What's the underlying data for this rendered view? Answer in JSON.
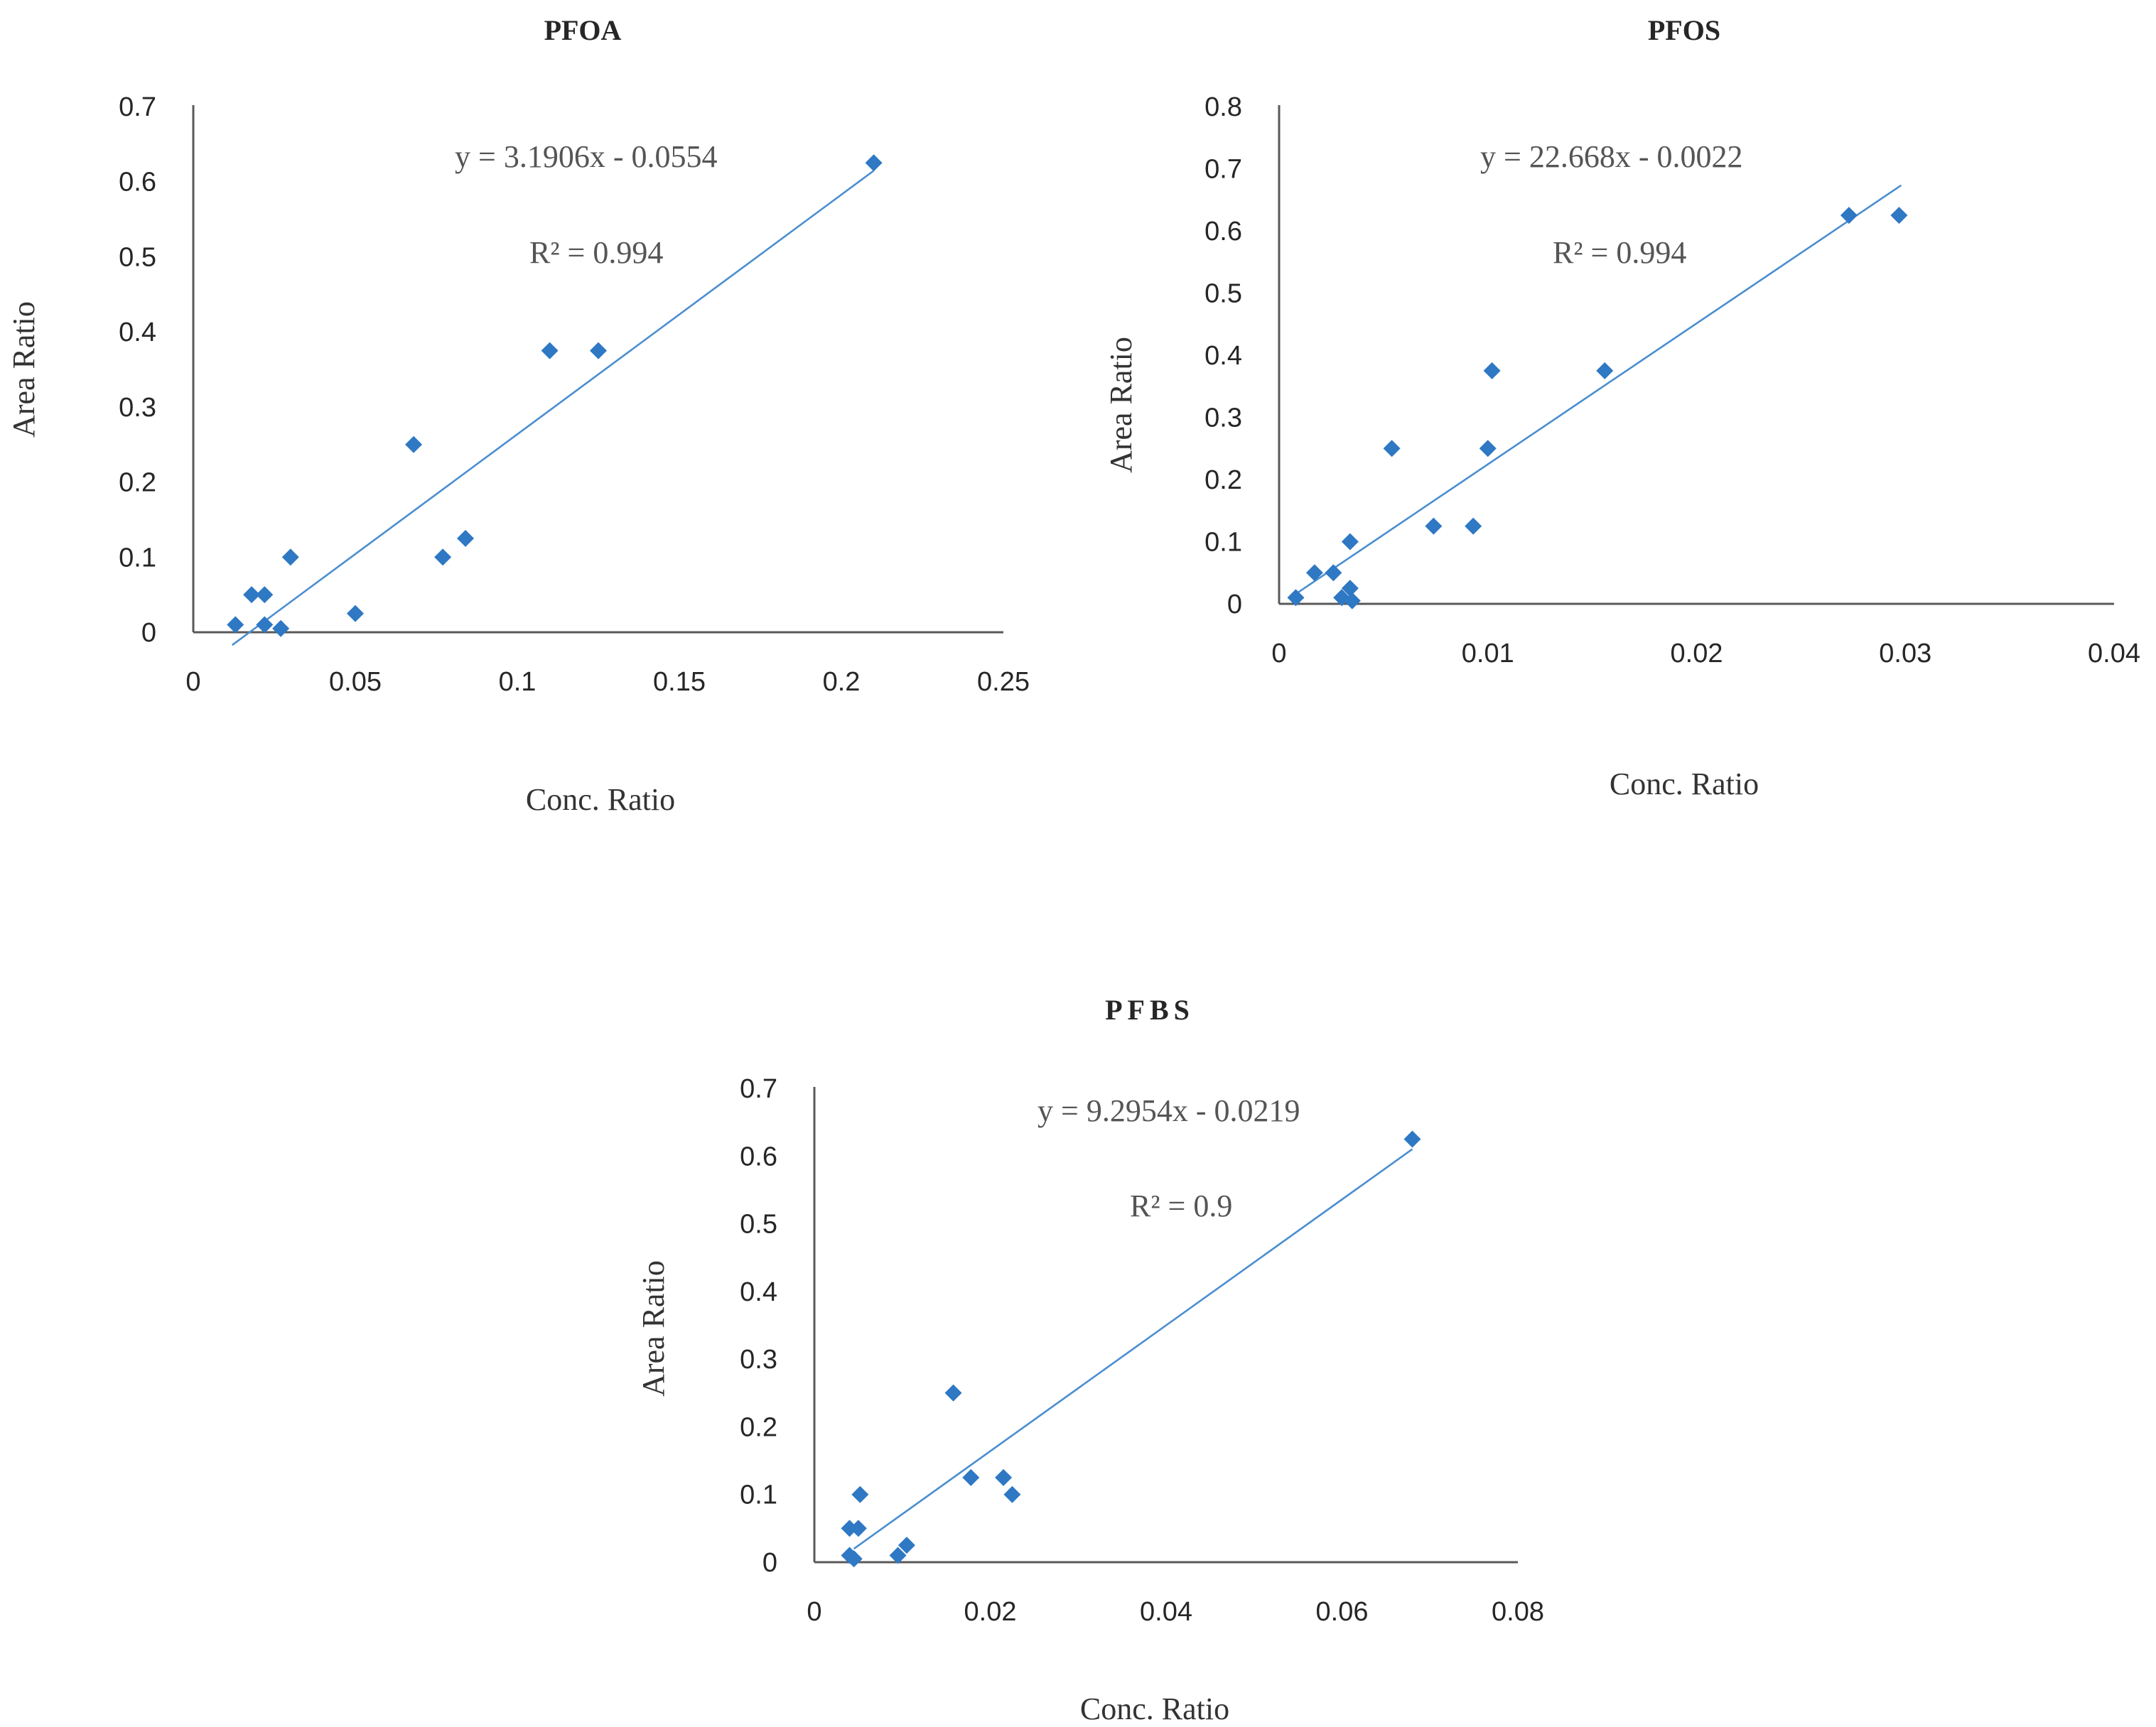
{
  "chart_data": [
    {
      "type": "scatter",
      "title": "PFOA",
      "xlabel": "Conc. Ratio",
      "ylabel": "Area Ratio",
      "xlim": [
        0,
        0.25
      ],
      "ylim": [
        0,
        0.7
      ],
      "xticks": [
        "0",
        "0.05",
        "0.1",
        "0.15",
        "0.2",
        "0.25"
      ],
      "yticks": [
        "0",
        "0.1",
        "0.2",
        "0.3",
        "0.4",
        "0.5",
        "0.6",
        "0.7"
      ],
      "equation": "y = 3.1906x - 0.0554",
      "r2": "R² = 0.994",
      "trendline": {
        "slope": 3.1906,
        "intercept": -0.0554,
        "x_range": [
          0.012,
          0.21
        ]
      },
      "points": [
        {
          "x": 0.013,
          "y": 0.01
        },
        {
          "x": 0.018,
          "y": 0.05
        },
        {
          "x": 0.022,
          "y": 0.05
        },
        {
          "x": 0.022,
          "y": 0.01
        },
        {
          "x": 0.027,
          "y": 0.005
        },
        {
          "x": 0.03,
          "y": 0.1
        },
        {
          "x": 0.05,
          "y": 0.025
        },
        {
          "x": 0.068,
          "y": 0.25
        },
        {
          "x": 0.077,
          "y": 0.1
        },
        {
          "x": 0.084,
          "y": 0.125
        },
        {
          "x": 0.11,
          "y": 0.375
        },
        {
          "x": 0.125,
          "y": 0.375
        },
        {
          "x": 0.21,
          "y": 0.625
        }
      ],
      "grid": false,
      "legend": "none"
    },
    {
      "type": "scatter",
      "title": "PFOS",
      "xlabel": "Conc. Ratio",
      "ylabel": "Area Ratio",
      "xlim": [
        0,
        0.04
      ],
      "ylim": [
        0,
        0.8
      ],
      "xticks": [
        "0",
        "0.01",
        "0.02",
        "0.03",
        "0.04"
      ],
      "yticks": [
        "0",
        "0.1",
        "0.2",
        "0.3",
        "0.4",
        "0.5",
        "0.6",
        "0.7",
        "0.8"
      ],
      "equation": "y = 22.668x - 0.0022",
      "r2": "R² = 0.994",
      "trendline": {
        "slope": 22.668,
        "intercept": -0.0022,
        "x_range": [
          0.0008,
          0.0298
        ]
      },
      "points": [
        {
          "x": 0.0008,
          "y": 0.01
        },
        {
          "x": 0.0017,
          "y": 0.05
        },
        {
          "x": 0.0026,
          "y": 0.05
        },
        {
          "x": 0.003,
          "y": 0.01
        },
        {
          "x": 0.0034,
          "y": 0.025
        },
        {
          "x": 0.0035,
          "y": 0.005
        },
        {
          "x": 0.0034,
          "y": 0.1
        },
        {
          "x": 0.0054,
          "y": 0.25
        },
        {
          "x": 0.0074,
          "y": 0.125
        },
        {
          "x": 0.0093,
          "y": 0.125
        },
        {
          "x": 0.01,
          "y": 0.25
        },
        {
          "x": 0.0102,
          "y": 0.375
        },
        {
          "x": 0.0156,
          "y": 0.375
        },
        {
          "x": 0.0273,
          "y": 0.625
        },
        {
          "x": 0.0297,
          "y": 0.625
        }
      ],
      "grid": false,
      "legend": "none"
    },
    {
      "type": "scatter",
      "title": "PFBS",
      "xlabel": "Conc. Ratio",
      "ylabel": "Area Ratio",
      "xlim": [
        0,
        0.08
      ],
      "ylim": [
        0,
        0.7
      ],
      "xticks": [
        "0",
        "0.02",
        "0.04",
        "0.06",
        "0.08"
      ],
      "yticks": [
        "0",
        "0.1",
        "0.2",
        "0.3",
        "0.4",
        "0.5",
        "0.6",
        "0.7"
      ],
      "equation": "y = 9.2954x - 0.0219",
      "r2": "R² = 0.9",
      "trendline": {
        "slope": 9.2954,
        "intercept": -0.0219,
        "x_range": [
          0.0045,
          0.068
        ]
      },
      "points": [
        {
          "x": 0.004,
          "y": 0.01
        },
        {
          "x": 0.0045,
          "y": 0.005
        },
        {
          "x": 0.004,
          "y": 0.05
        },
        {
          "x": 0.005,
          "y": 0.05
        },
        {
          "x": 0.0052,
          "y": 0.1
        },
        {
          "x": 0.0095,
          "y": 0.01
        },
        {
          "x": 0.0105,
          "y": 0.025
        },
        {
          "x": 0.0158,
          "y": 0.25
        },
        {
          "x": 0.0178,
          "y": 0.125
        },
        {
          "x": 0.0215,
          "y": 0.125
        },
        {
          "x": 0.0225,
          "y": 0.1
        },
        {
          "x": 0.068,
          "y": 0.625
        }
      ],
      "grid": false,
      "legend": "none"
    }
  ]
}
